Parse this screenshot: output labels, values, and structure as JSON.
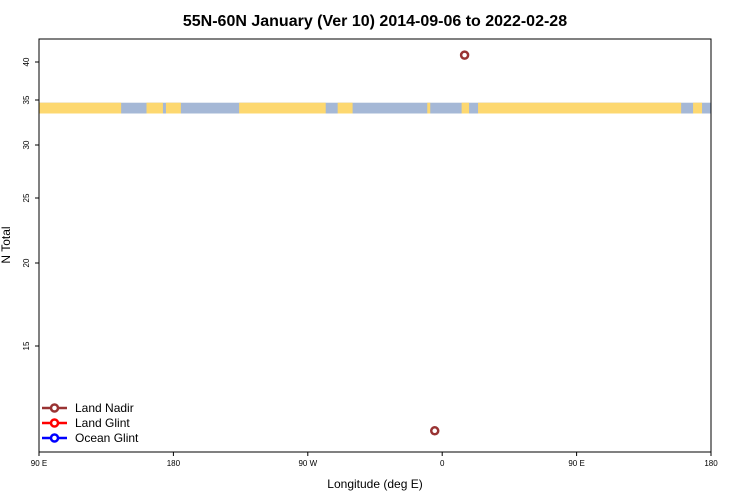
{
  "chart_data": {
    "type": "scatter",
    "title": "55N-60N January (Ver 10)   2014-09-06 to 2022-02-28",
    "xlabel": "Longitude (deg E)",
    "ylabel": "N Total",
    "x_ticks": [
      {
        "value": 90,
        "label": "90 E"
      },
      {
        "value": 180,
        "label": "180"
      },
      {
        "value": 270,
        "label": "90 W"
      },
      {
        "value": 360,
        "label": "0"
      },
      {
        "value": 450,
        "label": "90 E"
      },
      {
        "value": 540,
        "label": "180"
      }
    ],
    "y_ticks": [
      15,
      20,
      25,
      30,
      35,
      40
    ],
    "xlim": [
      90,
      540
    ],
    "ylim": [
      11,
      42
    ],
    "ocean_color": "#a5b8d6",
    "land_color": "#fdd870",
    "map_strip": {
      "y_range": [
        33.5,
        34.7
      ],
      "land_segments": [
        [
          90,
          145
        ],
        [
          162,
          173
        ],
        [
          175,
          185
        ],
        [
          224,
          282
        ],
        [
          290,
          300
        ],
        [
          350,
          352
        ],
        [
          373,
          378
        ],
        [
          384,
          520
        ],
        [
          528,
          534
        ]
      ]
    },
    "series": [
      {
        "name": "Land Nadir",
        "color": "#993333",
        "points": [
          [
            375,
            40.6
          ],
          [
            355,
            11.8
          ]
        ]
      },
      {
        "name": "Land Glint",
        "color": "#ff0000",
        "points": []
      },
      {
        "name": "Ocean Glint",
        "color": "#0000ff",
        "points": []
      }
    ],
    "legend_position": "bottom-left",
    "grid": false
  }
}
